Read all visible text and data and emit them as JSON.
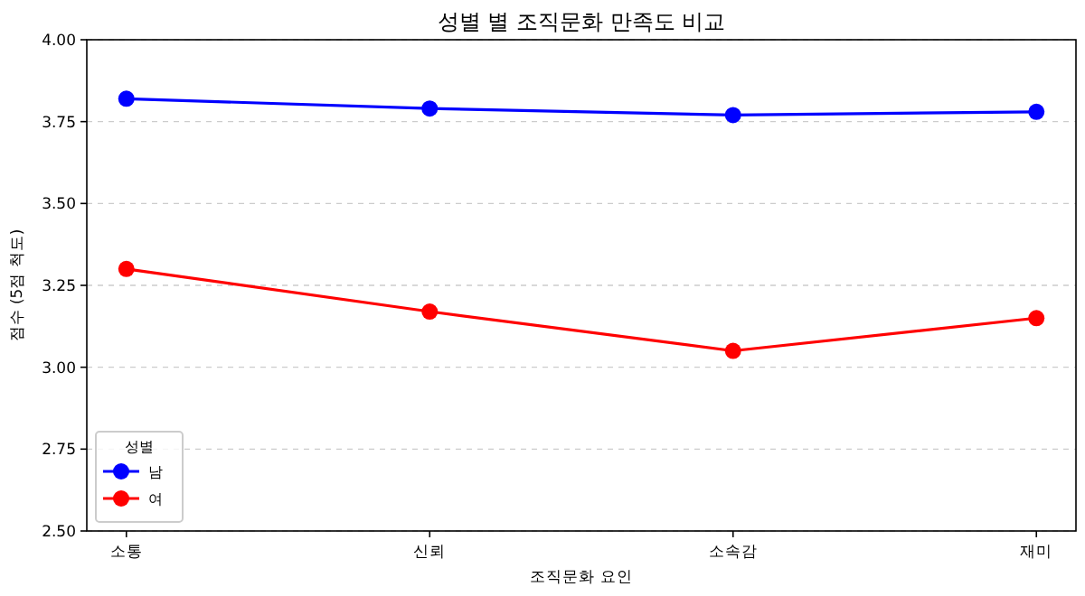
{
  "chart_data": {
    "type": "line",
    "title": "성별 별 조직문화 만족도 비교",
    "xlabel": "조직문화 요인",
    "ylabel": "점수 (5점 척도)",
    "legend_title": "성별",
    "categories": [
      "소통",
      "신뢰",
      "소속감",
      "재미"
    ],
    "series": [
      {
        "name": "남",
        "color": "#0000ff",
        "values": [
          3.82,
          3.79,
          3.77,
          3.78
        ]
      },
      {
        "name": "여",
        "color": "#ff0000",
        "values": [
          3.3,
          3.17,
          3.05,
          3.15
        ]
      }
    ],
    "ylim": [
      2.5,
      4.0
    ],
    "yticks": [
      {
        "value": 2.5,
        "label": "2.50"
      },
      {
        "value": 2.75,
        "label": "2.75"
      },
      {
        "value": 3.0,
        "label": "3.00"
      },
      {
        "value": 3.25,
        "label": "3.25"
      },
      {
        "value": 3.5,
        "label": "3.50"
      },
      {
        "value": 3.75,
        "label": "3.75"
      },
      {
        "value": 4.0,
        "label": "4.00"
      }
    ],
    "grid": "y",
    "legend": "bottom left",
    "marker": "circle",
    "line_style": "solid"
  }
}
